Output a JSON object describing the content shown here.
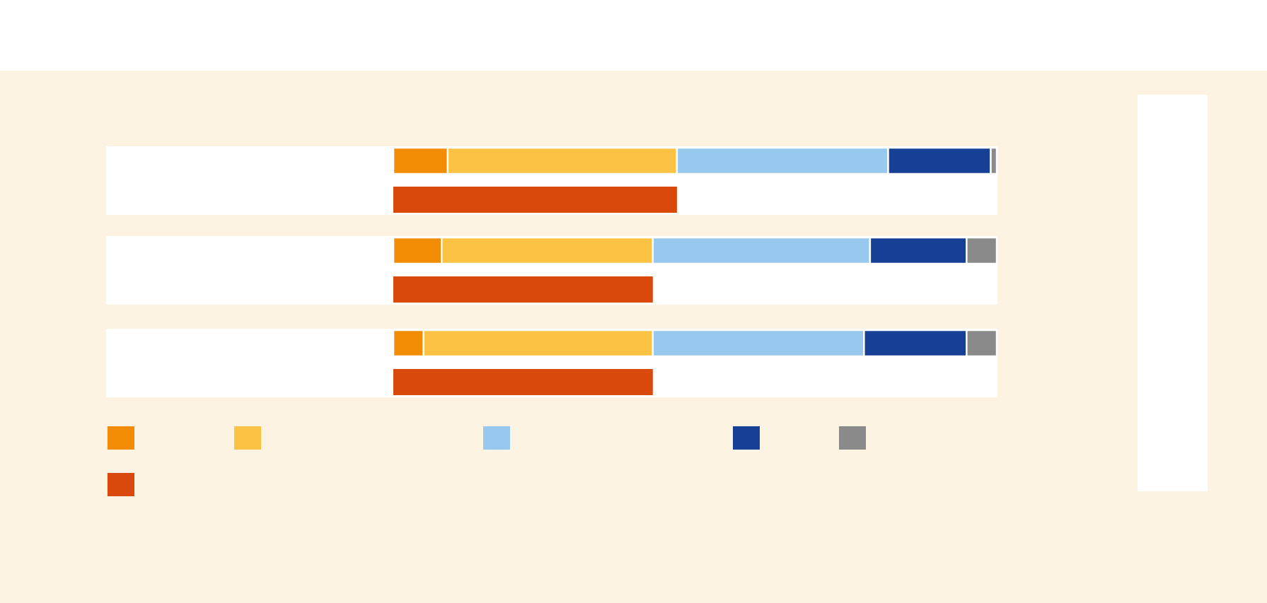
{
  "chart_data": [
    {
      "type": "stacked-bar",
      "orientation": "horizontal",
      "categories": [
        null,
        null,
        null
      ],
      "xlim": [
        0,
        100
      ],
      "series": [
        {
          "color": "#f28c05",
          "values": [
            9,
            8,
            5
          ]
        },
        {
          "color": "#fbc244",
          "values": [
            38,
            35,
            38
          ]
        },
        {
          "color": "#97c8ee",
          "values": [
            35,
            36,
            35
          ]
        },
        {
          "color": "#154096",
          "values": [
            17,
            16,
            17
          ]
        },
        {
          "color": "#8a8a8a",
          "values": [
            1,
            5,
            5
          ]
        }
      ]
    },
    {
      "type": "bar",
      "orientation": "horizontal",
      "categories": [
        null,
        null,
        null
      ],
      "xlim": [
        0,
        100
      ],
      "color": "#d9490b",
      "values": [
        47,
        43,
        43
      ]
    }
  ]
}
